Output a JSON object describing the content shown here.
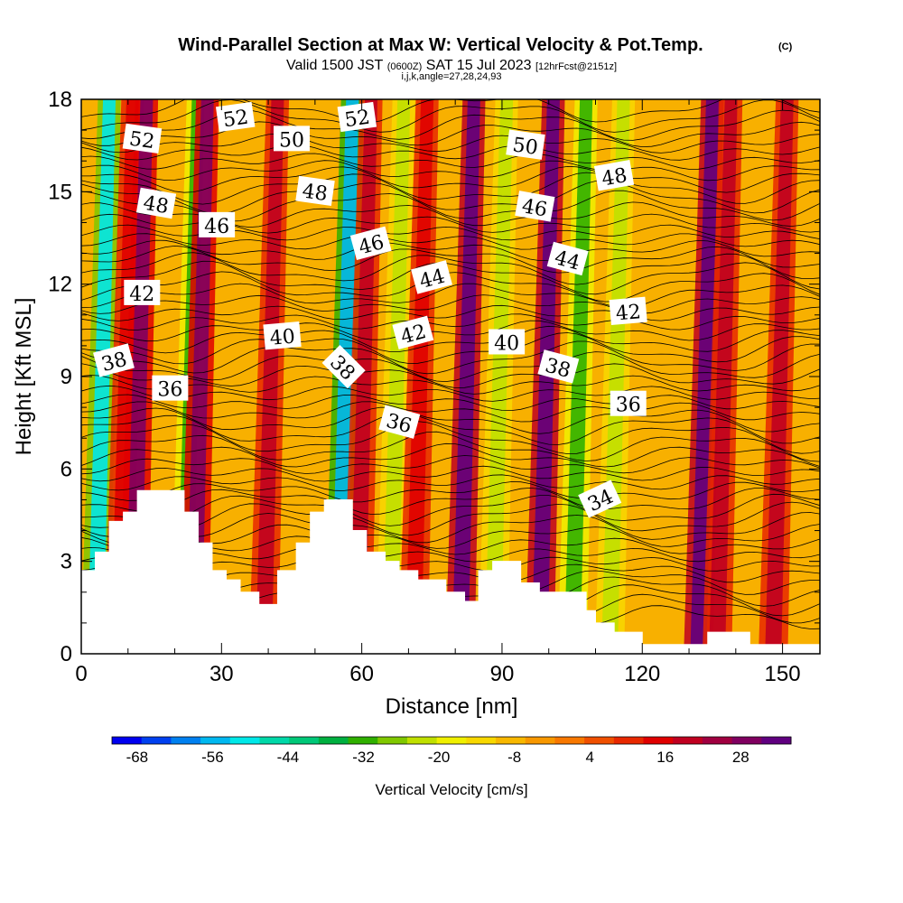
{
  "chart_data": {
    "type": "heatmap",
    "title": "Wind-Parallel Section at Max W: Vertical Velocity & Pot.Temp.",
    "title_badge": "(C)",
    "subtitle": {
      "main": "Valid 1500 JST",
      "utc": "(0600Z)",
      "date": "SAT 15 Jul 2023",
      "fcst": "[12hrFcst@2151z]"
    },
    "subtitle2": "i,j,k,angle=27,28,24,93",
    "xlabel": "Distance [nm]",
    "ylabel": "Height [Kft MSL]",
    "xlim": [
      0,
      158
    ],
    "ylim": [
      0,
      18
    ],
    "x_ticks": [
      0,
      30,
      60,
      90,
      120,
      150
    ],
    "y_ticks": [
      0,
      3,
      6,
      9,
      12,
      15,
      18
    ],
    "colorbar": {
      "title": "Vertical Velocity [cm/s]",
      "tick_labels": [
        "-68",
        "-56",
        "-44",
        "-32",
        "-20",
        "-8",
        "4",
        "16",
        "28"
      ],
      "colors": [
        "#0000f0",
        "#0040f0",
        "#0080f0",
        "#00b8f0",
        "#00e8e8",
        "#00d8a8",
        "#00c878",
        "#00b040",
        "#30b000",
        "#80c800",
        "#c0e000",
        "#f0f000",
        "#f8d800",
        "#f8b800",
        "#f89800",
        "#f87800",
        "#f05000",
        "#e82800",
        "#e00000",
        "#c00020",
        "#a00040",
        "#800060",
        "#600080"
      ]
    },
    "velocity_columns": [
      {
        "x": 3,
        "w_cm_s": -52
      },
      {
        "x": 8,
        "w_cm_s": 16
      },
      {
        "x": 11,
        "w_cm_s": 28
      },
      {
        "x": 22,
        "w_cm_s": -32
      },
      {
        "x": 24,
        "w_cm_s": 28
      },
      {
        "x": 39,
        "w_cm_s": 20
      },
      {
        "x": 55,
        "w_cm_s": -56
      },
      {
        "x": 59,
        "w_cm_s": 20
      },
      {
        "x": 66,
        "w_cm_s": -24
      },
      {
        "x": 71,
        "w_cm_s": 16
      },
      {
        "x": 81,
        "w_cm_s": 32
      },
      {
        "x": 88,
        "w_cm_s": -24
      },
      {
        "x": 98,
        "w_cm_s": 32
      },
      {
        "x": 105,
        "w_cm_s": -32
      },
      {
        "x": 113,
        "w_cm_s": -24
      },
      {
        "x": 132,
        "w_cm_s": 32
      },
      {
        "x": 136,
        "w_cm_s": 20
      },
      {
        "x": 148,
        "w_cm_s": 20
      }
    ],
    "terrain_kft": [
      [
        0,
        2.7
      ],
      [
        3,
        3.3
      ],
      [
        6,
        4.3
      ],
      [
        9,
        4.6
      ],
      [
        12,
        5.3
      ],
      [
        22,
        4.6
      ],
      [
        25,
        3.6
      ],
      [
        28,
        2.7
      ],
      [
        31,
        2.4
      ],
      [
        34,
        2.0
      ],
      [
        38,
        1.6
      ],
      [
        42,
        2.7
      ],
      [
        46,
        3.6
      ],
      [
        49,
        4.6
      ],
      [
        52,
        5.0
      ],
      [
        58,
        4.0
      ],
      [
        61,
        3.3
      ],
      [
        65,
        3.0
      ],
      [
        68,
        2.7
      ],
      [
        72,
        2.4
      ],
      [
        78,
        2.0
      ],
      [
        82,
        1.7
      ],
      [
        85,
        2.7
      ],
      [
        88,
        3.0
      ],
      [
        94,
        2.3
      ],
      [
        98,
        2.0
      ],
      [
        108,
        1.4
      ],
      [
        110,
        1.0
      ],
      [
        114,
        0.7
      ],
      [
        120,
        0.3
      ],
      [
        134,
        0.7
      ],
      [
        143,
        0.3
      ],
      [
        158,
        0.3
      ]
    ],
    "theta_labels": [
      {
        "value": "52",
        "x": 13,
        "y": 16.7,
        "rot": 8
      },
      {
        "value": "52",
        "x": 33,
        "y": 17.4,
        "rot": -8
      },
      {
        "value": "52",
        "x": 59,
        "y": 17.4,
        "rot": -8
      },
      {
        "value": "50",
        "x": 45,
        "y": 16.7,
        "rot": 0
      },
      {
        "value": "50",
        "x": 95,
        "y": 16.5,
        "rot": 8
      },
      {
        "value": "48",
        "x": 16,
        "y": 14.6,
        "rot": 10
      },
      {
        "value": "48",
        "x": 50,
        "y": 15.0,
        "rot": 8
      },
      {
        "value": "48",
        "x": 114,
        "y": 15.5,
        "rot": -10
      },
      {
        "value": "46",
        "x": 29,
        "y": 13.9,
        "rot": 0
      },
      {
        "value": "46",
        "x": 62,
        "y": 13.3,
        "rot": -15
      },
      {
        "value": "46",
        "x": 97,
        "y": 14.5,
        "rot": 10
      },
      {
        "value": "44",
        "x": 75,
        "y": 12.2,
        "rot": -15
      },
      {
        "value": "44",
        "x": 104,
        "y": 12.8,
        "rot": 15
      },
      {
        "value": "42",
        "x": 13,
        "y": 11.7,
        "rot": 0
      },
      {
        "value": "42",
        "x": 71,
        "y": 10.4,
        "rot": -15
      },
      {
        "value": "42",
        "x": 117,
        "y": 11.1,
        "rot": -5
      },
      {
        "value": "40",
        "x": 43,
        "y": 10.3,
        "rot": -5
      },
      {
        "value": "40",
        "x": 91,
        "y": 10.1,
        "rot": 0
      },
      {
        "value": "38",
        "x": 7,
        "y": 9.5,
        "rot": -15
      },
      {
        "value": "38",
        "x": 56,
        "y": 9.3,
        "rot": 45
      },
      {
        "value": "38",
        "x": 102,
        "y": 9.3,
        "rot": 15
      },
      {
        "value": "36",
        "x": 19,
        "y": 8.6,
        "rot": 0
      },
      {
        "value": "36",
        "x": 68,
        "y": 7.5,
        "rot": 15
      },
      {
        "value": "36",
        "x": 117,
        "y": 8.1,
        "rot": 0
      },
      {
        "value": "34",
        "x": 111,
        "y": 5.0,
        "rot": -25
      }
    ],
    "grid": false,
    "legend": "bottom"
  }
}
